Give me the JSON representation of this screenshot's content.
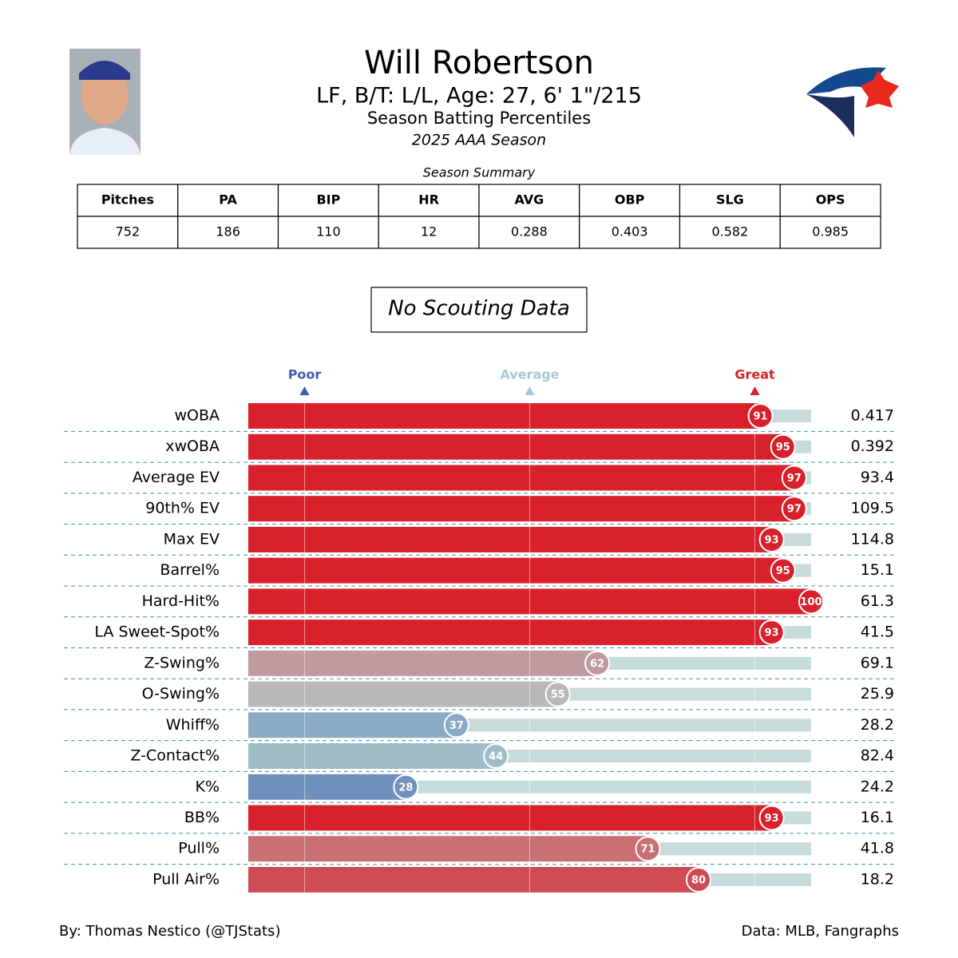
{
  "header": {
    "name": "Will Robertson",
    "bio": "LF, B/T: L/L, Age: 27, 6' 1\"/215",
    "subtitle": "Season Batting Percentiles",
    "season": "2025 AAA Season"
  },
  "summary": {
    "title": "Season Summary",
    "columns": [
      "Pitches",
      "PA",
      "BIP",
      "HR",
      "AVG",
      "OBP",
      "SLG",
      "OPS"
    ],
    "rows": [
      [
        "752",
        "186",
        "110",
        "12",
        "0.288",
        "0.403",
        "0.582",
        "0.985"
      ]
    ]
  },
  "scouting": "No Scouting Data",
  "chart_data": {
    "type": "percentile_bar",
    "categories": [
      "wOBA",
      "xwOBA",
      "Average EV",
      "90th% EV",
      "Max EV",
      "Barrel%",
      "Hard-Hit%",
      "LA Sweet-Spot%",
      "Z-Swing%",
      "O-Swing%",
      "Whiff%",
      "Z-Contact%",
      "K%",
      "BB%",
      "Pull%",
      "Pull Air%"
    ],
    "values": [
      91,
      95,
      97,
      97,
      93,
      95,
      100,
      93,
      62,
      55,
      37,
      44,
      28,
      93,
      71,
      80
    ],
    "stat_labels": [
      "0.417",
      "0.392",
      "93.4",
      "109.5",
      "114.8",
      "15.1",
      "61.3",
      "41.5",
      "69.1",
      "25.9",
      "28.2",
      "82.4",
      "24.2",
      "16.1",
      "41.8",
      "18.2"
    ],
    "colors": [
      "#d8212b",
      "#d8212b",
      "#d8212b",
      "#d8212b",
      "#d8212b",
      "#d8212b",
      "#d8212b",
      "#d8212b",
      "#bf9a9f",
      "#b8b8b8",
      "#8aabc4",
      "#9fbdc9",
      "#6f90bd",
      "#d8212b",
      "#c97075",
      "#d04c55"
    ],
    "track_color": "#c8dcdc",
    "xlim": [
      0,
      100
    ],
    "markers": [
      {
        "label": "Poor",
        "value": 10,
        "color": "#3b5fad"
      },
      {
        "label": "Average",
        "value": 50,
        "color": "#aac8d4"
      },
      {
        "label": "Great",
        "value": 90,
        "color": "#d8212b"
      }
    ]
  },
  "footer": {
    "left": "By: Thomas Nestico (@TJStats)",
    "right": "Data: MLB, Fangraphs"
  }
}
